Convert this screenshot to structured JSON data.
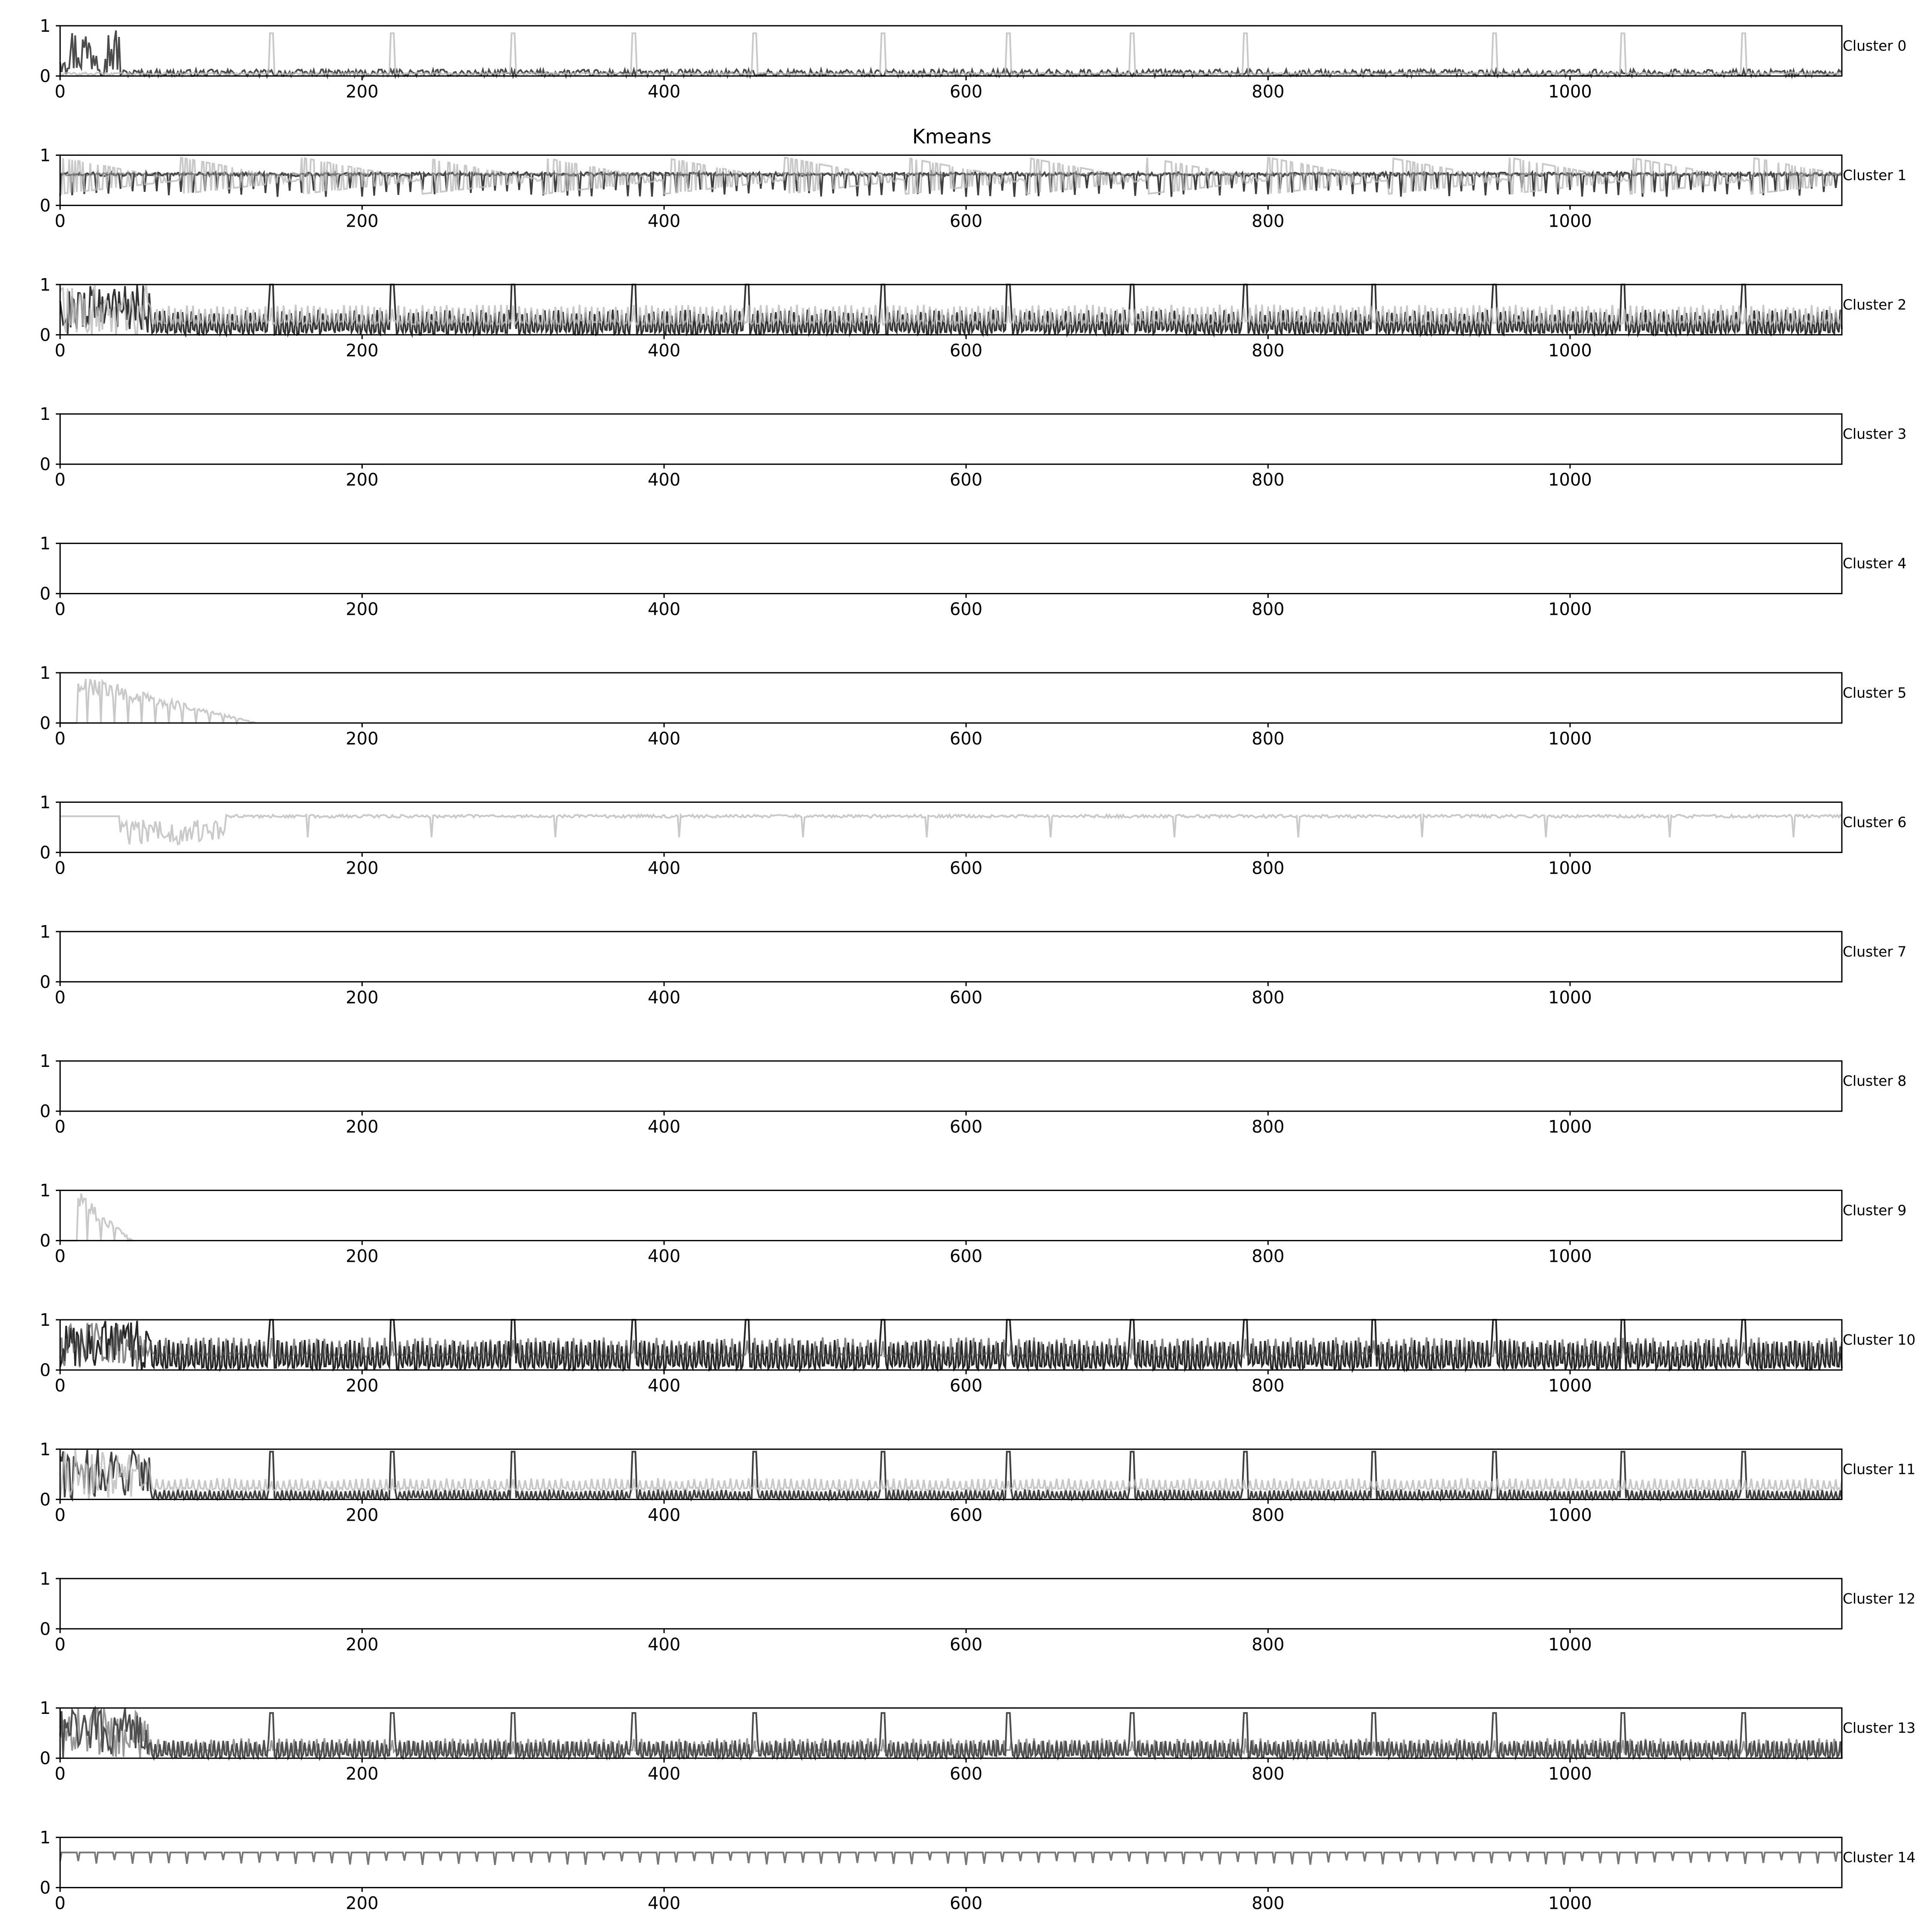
{
  "figure": {
    "title": "Kmeans",
    "colors": {
      "axes": "#000000",
      "background": "#ffffff",
      "series_dark": "#000000",
      "series_mid": "#555555",
      "series_light": "#bbbbbb"
    }
  },
  "chart_data": [
    {
      "type": "line",
      "label": "Cluster 0",
      "xlim": [
        0,
        1180
      ],
      "ylim": [
        0,
        1
      ],
      "xticks": [
        0,
        200,
        400,
        600,
        800,
        1000
      ],
      "yticks": [
        0,
        1
      ],
      "grid": false,
      "series": [
        {
          "tone": "dark",
          "alpha": 0.7,
          "kind": "burst",
          "base": 0.06,
          "amp": 0.14,
          "period": 4,
          "burst_end": 40,
          "burst_amp": 1.0
        },
        {
          "tone": "light",
          "alpha": 0.8,
          "kind": "spikes",
          "base": 0.02,
          "amp": 0.05,
          "spike_at": [
            140,
            220,
            300,
            380,
            460,
            545,
            628,
            710,
            785,
            950,
            1035,
            1115
          ],
          "spike_h": 0.85
        }
      ]
    },
    {
      "type": "line",
      "label": "Cluster 1",
      "xlim": [
        0,
        1180
      ],
      "ylim": [
        0,
        1
      ],
      "xticks": [
        0,
        200,
        400,
        600,
        800,
        1000
      ],
      "yticks": [
        0,
        1
      ],
      "grid": false,
      "series": [
        {
          "tone": "dark",
          "alpha": 0.75,
          "kind": "dips",
          "base": 0.62,
          "amp": 0.08,
          "period": 8,
          "dip_depth": 0.45
        },
        {
          "tone": "light",
          "alpha": 0.8,
          "kind": "sawtooth",
          "base": 0.5,
          "amp": 0.45,
          "period": 80
        },
        {
          "tone": "mid",
          "alpha": 0.6,
          "kind": "flat",
          "base": 0.62,
          "amp": 0.05
        }
      ]
    },
    {
      "type": "line",
      "label": "Cluster 2",
      "xlim": [
        0,
        1180
      ],
      "ylim": [
        0,
        1
      ],
      "xticks": [
        0,
        200,
        400,
        600,
        800,
        1000
      ],
      "yticks": [
        0,
        1
      ],
      "grid": false,
      "series": [
        {
          "tone": "dark",
          "alpha": 0.8,
          "kind": "oscillate",
          "base": 0.25,
          "amp": 0.25,
          "period": 3,
          "spike_at": [
            140,
            220,
            300,
            380,
            455,
            545,
            628,
            710,
            785,
            870,
            950,
            1035,
            1115
          ],
          "spike_h": 1.0
        },
        {
          "tone": "light",
          "alpha": 0.8,
          "kind": "oscillate",
          "base": 0.4,
          "amp": 0.2,
          "period": 4
        }
      ]
    },
    {
      "type": "line",
      "label": "Cluster 3",
      "xlim": [
        0,
        1180
      ],
      "ylim": [
        0,
        1
      ],
      "xticks": [
        0,
        200,
        400,
        600,
        800,
        1000
      ],
      "yticks": [
        0,
        1
      ],
      "grid": false,
      "series": []
    },
    {
      "type": "line",
      "label": "Cluster 4",
      "xlim": [
        0,
        1180
      ],
      "ylim": [
        0,
        1
      ],
      "xticks": [
        0,
        200,
        400,
        600,
        800,
        1000
      ],
      "yticks": [
        0,
        1
      ],
      "grid": false,
      "series": []
    },
    {
      "type": "line",
      "label": "Cluster 5",
      "xlim": [
        0,
        1180
      ],
      "ylim": [
        0,
        1
      ],
      "xticks": [
        0,
        200,
        400,
        600,
        800,
        1000
      ],
      "yticks": [
        0,
        1
      ],
      "grid": false,
      "series": [
        {
          "tone": "light",
          "alpha": 0.8,
          "kind": "decay_burst",
          "start": 12,
          "end": 130
        }
      ]
    },
    {
      "type": "line",
      "label": "Cluster 6",
      "xlim": [
        0,
        1180
      ],
      "ylim": [
        0,
        1
      ],
      "xticks": [
        0,
        200,
        400,
        600,
        800,
        1000
      ],
      "yticks": [
        0,
        1
      ],
      "grid": false,
      "series": [
        {
          "tone": "light",
          "alpha": 0.8,
          "kind": "cluster6",
          "base": 0.72,
          "amp": 0.06
        }
      ]
    },
    {
      "type": "line",
      "label": "Cluster 7",
      "xlim": [
        0,
        1180
      ],
      "ylim": [
        0,
        1
      ],
      "xticks": [
        0,
        200,
        400,
        600,
        800,
        1000
      ],
      "yticks": [
        0,
        1
      ],
      "grid": false,
      "series": []
    },
    {
      "type": "line",
      "label": "Cluster 8",
      "xlim": [
        0,
        1180
      ],
      "ylim": [
        0,
        1
      ],
      "xticks": [
        0,
        200,
        400,
        600,
        800,
        1000
      ],
      "yticks": [
        0,
        1
      ],
      "grid": false,
      "series": []
    },
    {
      "type": "line",
      "label": "Cluster 9",
      "xlim": [
        0,
        1180
      ],
      "ylim": [
        0,
        1
      ],
      "xticks": [
        0,
        200,
        400,
        600,
        800,
        1000
      ],
      "yticks": [
        0,
        1
      ],
      "grid": false,
      "series": [
        {
          "tone": "light",
          "alpha": 0.8,
          "kind": "decay_burst",
          "start": 12,
          "end": 48
        }
      ]
    },
    {
      "type": "line",
      "label": "Cluster 10",
      "xlim": [
        0,
        1180
      ],
      "ylim": [
        0,
        1
      ],
      "xticks": [
        0,
        200,
        400,
        600,
        800,
        1000
      ],
      "yticks": [
        0,
        1
      ],
      "grid": false,
      "series": [
        {
          "tone": "dark",
          "alpha": 0.85,
          "kind": "oscillate",
          "base": 0.3,
          "amp": 0.3,
          "period": 3,
          "spike_at": [
            140,
            220,
            300,
            380,
            455,
            545,
            628,
            710,
            785,
            870,
            950,
            1035,
            1115
          ],
          "spike_h": 1.0
        },
        {
          "tone": "mid",
          "alpha": 0.7,
          "kind": "oscillate",
          "base": 0.45,
          "amp": 0.2,
          "period": 5
        }
      ]
    },
    {
      "type": "line",
      "label": "Cluster 11",
      "xlim": [
        0,
        1180
      ],
      "ylim": [
        0,
        1
      ],
      "xticks": [
        0,
        200,
        400,
        600,
        800,
        1000
      ],
      "yticks": [
        0,
        1
      ],
      "grid": false,
      "series": [
        {
          "tone": "dark",
          "alpha": 0.75,
          "kind": "oscillate",
          "base": 0.1,
          "amp": 0.1,
          "period": 3,
          "spike_at": [
            140,
            220,
            300,
            380,
            460,
            545,
            628,
            710,
            785,
            870,
            950,
            1035,
            1115
          ],
          "spike_h": 0.95
        },
        {
          "tone": "light",
          "alpha": 0.8,
          "kind": "oscillate",
          "base": 0.3,
          "amp": 0.12,
          "period": 4
        }
      ]
    },
    {
      "type": "line",
      "label": "Cluster 12",
      "xlim": [
        0,
        1180
      ],
      "ylim": [
        0,
        1
      ],
      "xticks": [
        0,
        200,
        400,
        600,
        800,
        1000
      ],
      "yticks": [
        0,
        1
      ],
      "grid": false,
      "series": []
    },
    {
      "type": "line",
      "label": "Cluster 13",
      "xlim": [
        0,
        1180
      ],
      "ylim": [
        0,
        1
      ],
      "xticks": [
        0,
        200,
        400,
        600,
        800,
        1000
      ],
      "yticks": [
        0,
        1
      ],
      "grid": false,
      "series": [
        {
          "tone": "dark",
          "alpha": 0.7,
          "kind": "oscillate",
          "base": 0.18,
          "amp": 0.18,
          "period": 3,
          "spike_at": [
            140,
            220,
            300,
            380,
            460,
            545,
            628,
            710,
            785,
            870,
            950,
            1035,
            1115
          ],
          "spike_h": 0.9
        },
        {
          "tone": "mid",
          "alpha": 0.6,
          "kind": "oscillate",
          "base": 0.25,
          "amp": 0.15,
          "period": 5
        }
      ]
    },
    {
      "type": "line",
      "label": "Cluster 14",
      "xlim": [
        0,
        1180
      ],
      "ylim": [
        0,
        1
      ],
      "xticks": [
        0,
        200,
        400,
        600,
        800,
        1000
      ],
      "yticks": [
        0,
        1
      ],
      "grid": false,
      "series": [
        {
          "tone": "mid",
          "alpha": 0.8,
          "kind": "dips",
          "base": 0.7,
          "amp": 0.0,
          "period": 12,
          "dip_depth": 0.25
        }
      ]
    }
  ]
}
